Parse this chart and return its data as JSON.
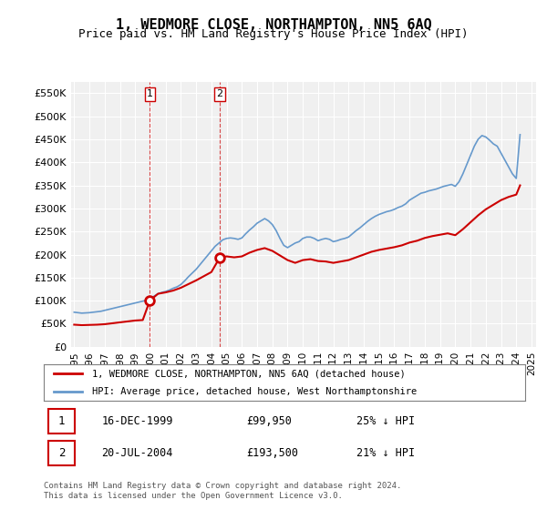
{
  "title": "1, WEDMORE CLOSE, NORTHAMPTON, NN5 6AQ",
  "subtitle": "Price paid vs. HM Land Registry's House Price Index (HPI)",
  "title_fontsize": 11,
  "subtitle_fontsize": 9,
  "background_color": "#ffffff",
  "plot_bg_color": "#f0f0f0",
  "grid_color": "#ffffff",
  "ylim": [
    0,
    575000
  ],
  "yticks": [
    0,
    50000,
    100000,
    150000,
    200000,
    250000,
    300000,
    350000,
    400000,
    450000,
    500000,
    550000
  ],
  "ytick_labels": [
    "£0",
    "£50K",
    "£100K",
    "£150K",
    "£200K",
    "£250K",
    "£300K",
    "£350K",
    "£400K",
    "£450K",
    "£500K",
    "£550K"
  ],
  "red_line_label": "1, WEDMORE CLOSE, NORTHAMPTON, NN5 6AQ (detached house)",
  "blue_line_label": "HPI: Average price, detached house, West Northamptonshire",
  "red_color": "#cc0000",
  "blue_color": "#6699cc",
  "transactions": [
    {
      "num": 1,
      "date": "16-DEC-1999",
      "price": "£99,950",
      "hpi": "25% ↓ HPI",
      "year": 1999.96
    },
    {
      "num": 2,
      "date": "20-JUL-2004",
      "price": "£193,500",
      "hpi": "21% ↓ HPI",
      "year": 2004.55
    }
  ],
  "transaction_prices": [
    99950,
    193500
  ],
  "transaction_years": [
    1999.96,
    2004.55
  ],
  "footnote": "Contains HM Land Registry data © Crown copyright and database right 2024.\nThis data is licensed under the Open Government Licence v3.0.",
  "hpi_years": [
    1995.0,
    1995.25,
    1995.5,
    1995.75,
    1996.0,
    1996.25,
    1996.5,
    1996.75,
    1997.0,
    1997.25,
    1997.5,
    1997.75,
    1998.0,
    1998.25,
    1998.5,
    1998.75,
    1999.0,
    1999.25,
    1999.5,
    1999.75,
    2000.0,
    2000.25,
    2000.5,
    2000.75,
    2001.0,
    2001.25,
    2001.5,
    2001.75,
    2002.0,
    2002.25,
    2002.5,
    2002.75,
    2003.0,
    2003.25,
    2003.5,
    2003.75,
    2004.0,
    2004.25,
    2004.5,
    2004.75,
    2005.0,
    2005.25,
    2005.5,
    2005.75,
    2006.0,
    2006.25,
    2006.5,
    2006.75,
    2007.0,
    2007.25,
    2007.5,
    2007.75,
    2008.0,
    2008.25,
    2008.5,
    2008.75,
    2009.0,
    2009.25,
    2009.5,
    2009.75,
    2010.0,
    2010.25,
    2010.5,
    2010.75,
    2011.0,
    2011.25,
    2011.5,
    2011.75,
    2012.0,
    2012.25,
    2012.5,
    2012.75,
    2013.0,
    2013.25,
    2013.5,
    2013.75,
    2014.0,
    2014.25,
    2014.5,
    2014.75,
    2015.0,
    2015.25,
    2015.5,
    2015.75,
    2016.0,
    2016.25,
    2016.5,
    2016.75,
    2017.0,
    2017.25,
    2017.5,
    2017.75,
    2018.0,
    2018.25,
    2018.5,
    2018.75,
    2019.0,
    2019.25,
    2019.5,
    2019.75,
    2020.0,
    2020.25,
    2020.5,
    2020.75,
    2021.0,
    2021.25,
    2021.5,
    2021.75,
    2022.0,
    2022.25,
    2022.5,
    2022.75,
    2023.0,
    2023.25,
    2023.5,
    2023.75,
    2024.0,
    2024.25
  ],
  "hpi_values": [
    75000,
    74000,
    73000,
    73500,
    74000,
    75000,
    76000,
    77000,
    79000,
    81000,
    83000,
    85000,
    87000,
    89000,
    91000,
    93000,
    95000,
    97000,
    99000,
    101000,
    105000,
    110000,
    115000,
    118000,
    120000,
    123000,
    127000,
    130000,
    135000,
    143000,
    152000,
    160000,
    168000,
    178000,
    188000,
    198000,
    208000,
    218000,
    225000,
    232000,
    235000,
    236000,
    235000,
    233000,
    236000,
    245000,
    253000,
    260000,
    268000,
    273000,
    278000,
    273000,
    265000,
    252000,
    235000,
    220000,
    215000,
    220000,
    225000,
    228000,
    235000,
    238000,
    238000,
    235000,
    230000,
    233000,
    235000,
    233000,
    228000,
    230000,
    233000,
    235000,
    238000,
    245000,
    252000,
    258000,
    265000,
    272000,
    278000,
    283000,
    287000,
    290000,
    293000,
    295000,
    298000,
    302000,
    305000,
    310000,
    318000,
    323000,
    328000,
    333000,
    335000,
    338000,
    340000,
    342000,
    345000,
    348000,
    350000,
    352000,
    348000,
    358000,
    375000,
    395000,
    415000,
    435000,
    450000,
    458000,
    455000,
    448000,
    440000,
    435000,
    420000,
    405000,
    390000,
    375000,
    365000,
    460000
  ],
  "red_years": [
    1995.0,
    1995.5,
    1996.0,
    1996.5,
    1997.0,
    1997.5,
    1998.0,
    1998.5,
    1999.0,
    1999.5,
    1999.96,
    2000.5,
    2001.0,
    2001.5,
    2002.0,
    2002.5,
    2003.0,
    2003.5,
    2004.0,
    2004.55,
    2005.0,
    2005.5,
    2006.0,
    2006.5,
    2007.0,
    2007.5,
    2008.0,
    2008.5,
    2009.0,
    2009.5,
    2010.0,
    2010.5,
    2011.0,
    2011.5,
    2012.0,
    2012.5,
    2013.0,
    2013.5,
    2014.0,
    2014.5,
    2015.0,
    2015.5,
    2016.0,
    2016.5,
    2017.0,
    2017.5,
    2018.0,
    2018.5,
    2019.0,
    2019.5,
    2020.0,
    2020.5,
    2021.0,
    2021.5,
    2022.0,
    2022.5,
    2023.0,
    2023.5,
    2024.0,
    2024.25
  ],
  "red_values": [
    48000,
    47000,
    47500,
    48000,
    49000,
    51000,
    53000,
    55000,
    57000,
    58000,
    99950,
    115000,
    118000,
    122000,
    128000,
    136000,
    144000,
    153000,
    162000,
    193500,
    196000,
    194000,
    196000,
    204000,
    210000,
    214000,
    208000,
    198000,
    188000,
    182000,
    188000,
    190000,
    186000,
    185000,
    182000,
    185000,
    188000,
    194000,
    200000,
    206000,
    210000,
    213000,
    216000,
    220000,
    226000,
    230000,
    236000,
    240000,
    243000,
    246000,
    242000,
    255000,
    270000,
    285000,
    298000,
    308000,
    318000,
    325000,
    330000,
    350000
  ]
}
